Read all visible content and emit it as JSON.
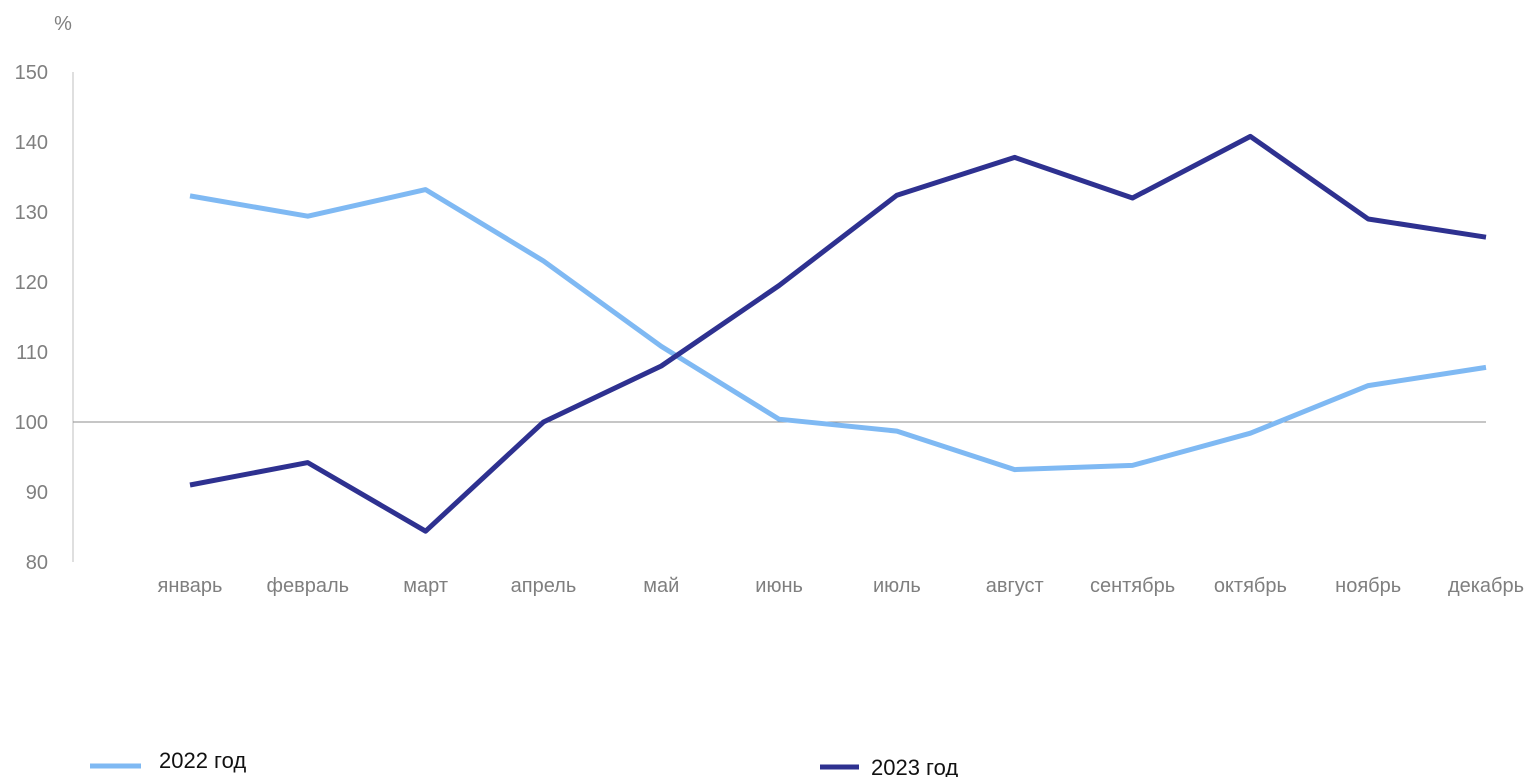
{
  "chart_data": {
    "type": "line",
    "unit_label": "%",
    "categories": [
      "январь",
      "февраль",
      "март",
      "апрель",
      "май",
      "июнь",
      "июль",
      "август",
      "сентябрь",
      "октябрь",
      "ноябрь",
      "декабрь"
    ],
    "series": [
      {
        "name": "2022 год",
        "color": "#7fb9f3",
        "values": [
          132.3,
          129.4,
          133.2,
          123.0,
          110.8,
          100.4,
          98.7,
          93.2,
          93.8,
          98.4,
          105.2,
          107.8
        ]
      },
      {
        "name": "2023 год",
        "color": "#2e3190",
        "values": [
          91.0,
          94.2,
          84.4,
          100.0,
          108.0,
          119.5,
          132.4,
          137.8,
          132.0,
          140.8,
          129.0,
          126.4
        ]
      }
    ],
    "ylim": [
      80,
      150
    ],
    "yticks": [
      80,
      90,
      100,
      110,
      120,
      130,
      140,
      150
    ],
    "reference_line": 100,
    "grid": false,
    "legend_position": "bottom"
  }
}
